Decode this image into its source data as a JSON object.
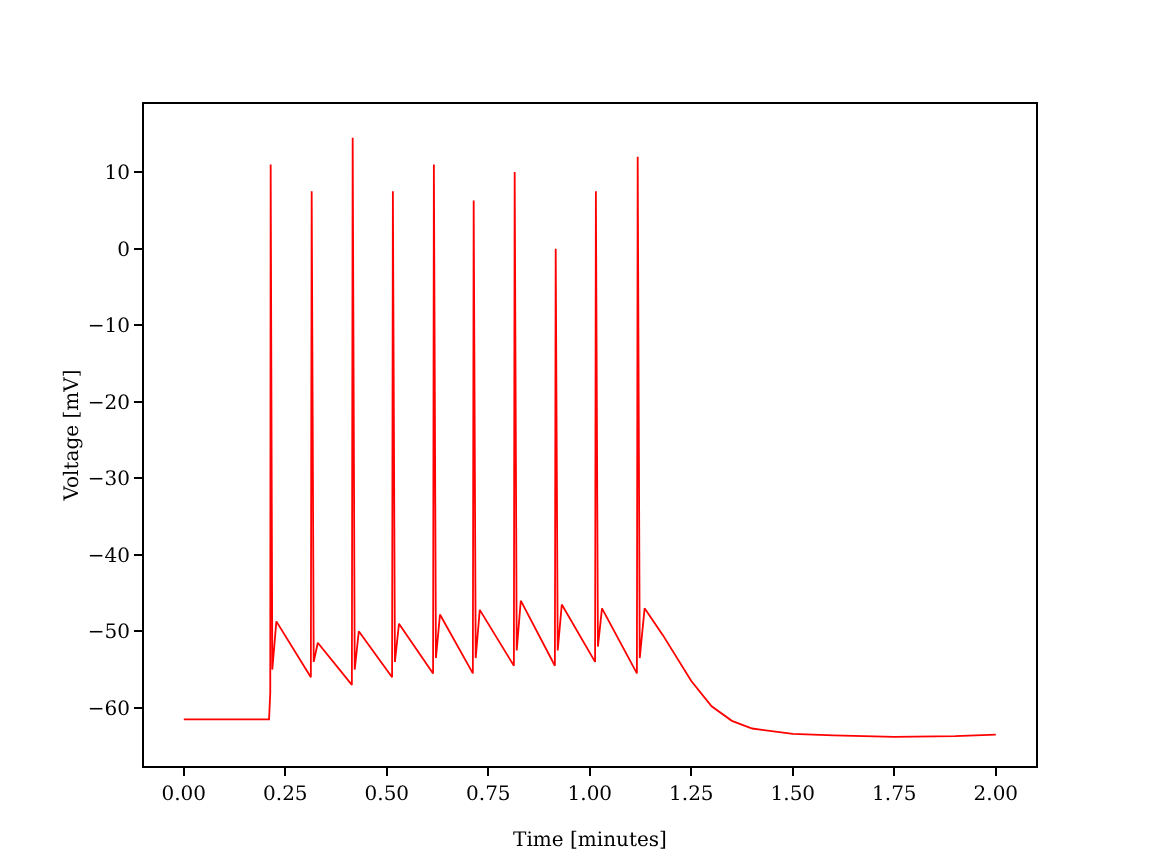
{
  "chart_data": {
    "type": "line",
    "xlabel": "Time [minutes]",
    "ylabel": "Voltage [mV]",
    "x": [
      0,
      0.21,
      0.213,
      0.214,
      0.218,
      0.228,
      0.313,
      0.315,
      0.32,
      0.33,
      0.414,
      0.416,
      0.421,
      0.431,
      0.513,
      0.515,
      0.52,
      0.53,
      0.614,
      0.616,
      0.621,
      0.631,
      0.712,
      0.714,
      0.719,
      0.729,
      0.813,
      0.815,
      0.82,
      0.83,
      0.914,
      0.916,
      0.921,
      0.931,
      1.013,
      1.015,
      1.02,
      1.03,
      1.116,
      1.118,
      1.123,
      1.135,
      1.18,
      1.25,
      1.3,
      1.35,
      1.4,
      1.5,
      1.6,
      1.75,
      1.9,
      2.0
    ],
    "series": [
      {
        "color": "#ff0000",
        "values": [
          -61.5,
          -61.5,
          -58,
          11,
          -55,
          -48.7,
          -56,
          7.5,
          -54,
          -51.5,
          -57,
          14.5,
          -55,
          -50,
          -56,
          7.5,
          -54,
          -49,
          -55.5,
          11,
          -53.5,
          -47.8,
          -55.5,
          6.3,
          -53.5,
          -47.2,
          -54.5,
          10,
          -52.5,
          -46,
          -54.5,
          0,
          -52.5,
          -46.5,
          -54,
          7.5,
          -52,
          -47,
          -55.5,
          12,
          -53.5,
          -47,
          -50.5,
          -56.5,
          -59.8,
          -61.7,
          -62.7,
          -63.4,
          -63.6,
          -63.8,
          -63.7,
          -63.5
        ]
      }
    ],
    "xlim": [
      -0.098,
      2.099
    ],
    "ylim": [
      -67.6,
      18.9
    ],
    "xticks": [
      {
        "value": 0,
        "label": "0.00"
      },
      {
        "value": 0.25,
        "label": "0.25"
      },
      {
        "value": 0.5,
        "label": "0.50"
      },
      {
        "value": 0.75,
        "label": "0.75"
      },
      {
        "value": 1,
        "label": "1.00"
      },
      {
        "value": 1.25,
        "label": "1.25"
      },
      {
        "value": 1.5,
        "label": "1.50"
      },
      {
        "value": 1.75,
        "label": "1.75"
      },
      {
        "value": 2,
        "label": "2.00"
      }
    ],
    "yticks": [
      {
        "value": -60,
        "label": "−60"
      },
      {
        "value": -50,
        "label": "−50"
      },
      {
        "value": -40,
        "label": "−40"
      },
      {
        "value": -30,
        "label": "−30"
      },
      {
        "value": -20,
        "label": "−20"
      },
      {
        "value": -10,
        "label": "−10"
      },
      0,
      10
    ],
    "grid": false,
    "marker": "none",
    "line_style": "solid"
  }
}
